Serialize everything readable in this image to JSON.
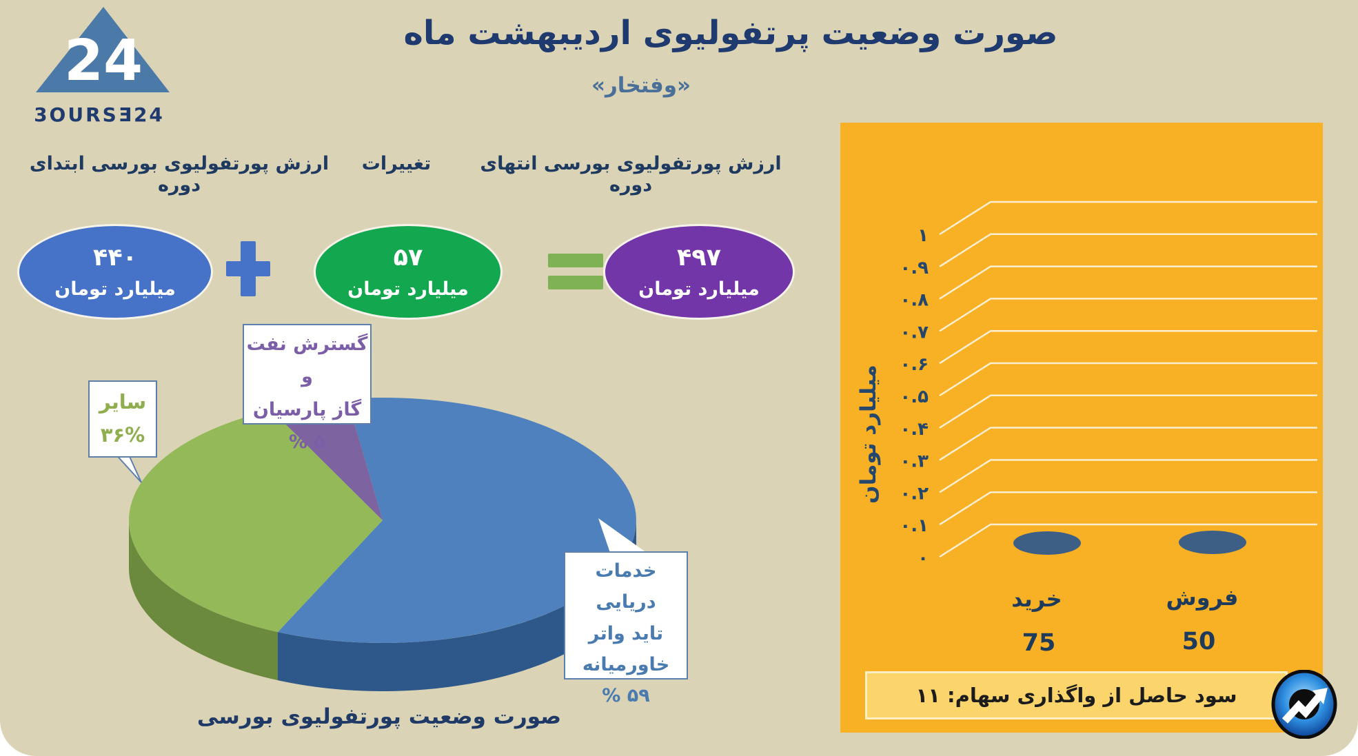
{
  "header": {
    "title": "صورت وضعیت پرتفولیوی اردیبهشت ماه",
    "subtitle": "«وفتخار»"
  },
  "logo": {
    "wordmark": "3OURSƎ24",
    "mark_number": "24"
  },
  "flow": {
    "labels": {
      "start": "ارزش پورتفولیوی بورسی ابتدای دوره",
      "change": "تغییرات",
      "end": "ارزش پورتفولیوی بورسی انتهای دوره"
    },
    "start": {
      "value": "۴۴۰",
      "unit": "میلیارد تومان"
    },
    "change": {
      "value": "۵۷",
      "unit": "میلیارد تومان"
    },
    "end": {
      "value": "۴۹۷",
      "unit": "میلیارد تومان"
    },
    "operators": {
      "plus": "+",
      "equals": "="
    }
  },
  "pie": {
    "caption": "صورت وضعیت پورتفولیوی بورسی",
    "callouts": {
      "tidewater": "خدمات دریایی\nتاید واتر\nخاورمیانه\n۵۹ %",
      "other": "سایر\n۳۶%",
      "parsian": "گسترش نفت و\nگاز پارسیان\n۵ %"
    }
  },
  "bar_panel": {
    "y_axis_title": "میلیارد تومان",
    "ticks": [
      "۱",
      "۰.۹",
      "۰.۸",
      "۰.۷",
      "۰.۶",
      "۰.۵",
      "۰.۴",
      "۰.۳",
      "۰.۲",
      "۰.۱",
      "۰"
    ],
    "categories": [
      {
        "label": "خرید",
        "value": "75"
      },
      {
        "label": "فروش",
        "value": "50"
      }
    ],
    "note": "سود حاصل از واگذاری سهام: ۱۱"
  },
  "palette": {
    "card_bg": "#dbd3b5",
    "panel_orange": "#f8b125",
    "navy": "#1f3a66",
    "steel_blue": "#4a7099",
    "ellipse_blue": "#4673c8",
    "ellipse_green": "#13a74f",
    "ellipse_purple": "#7336a9",
    "plus_blue": "#4673c8",
    "equals_green": "#7fb254",
    "pie_blue": "#4e81bd",
    "pie_blue_dark": "#2e578a",
    "pie_green": "#93b958",
    "pie_green_dark": "#6b8a3e",
    "pie_purple": "#7e63a1",
    "callout_border": "#5d7fae",
    "callout_green_text": "#8fae4e",
    "callout_purple_text": "#7b5ea7",
    "callout_blue_text": "#4a7bb0",
    "tick_navy": "#24476b",
    "cylinder": "#3d5f85",
    "gridline": "#ffffff",
    "note_bg": "#fbd56b",
    "logo_triangle": "#4b7aa9"
  },
  "chart_data": [
    {
      "type": "pie",
      "title": "صورت وضعیت پورتفولیوی بورسی",
      "labels": [
        "خدمات دریایی تاید واتر خاورمیانه",
        "سایر",
        "گسترش نفت و گاز پارسیان"
      ],
      "values": [
        59,
        36,
        5
      ],
      "unit": "%",
      "colors": [
        "#4e81bd",
        "#93b958",
        "#7e63a1"
      ],
      "style": "3d-pie",
      "legend_position": "callouts"
    },
    {
      "type": "bar",
      "categories": [
        "خرید",
        "فروش"
      ],
      "values": [
        75,
        50
      ],
      "bar_heights_shown": [
        0,
        0
      ],
      "title": "",
      "xlabel": "",
      "ylabel": "میلیارد تومان",
      "ylim": [
        0,
        1
      ],
      "y_ticks": [
        0,
        0.1,
        0.2,
        0.3,
        0.4,
        0.5,
        0.6,
        0.7,
        0.8,
        0.9,
        1
      ],
      "grid": true,
      "style": "3d-cylinder on orange background, bars flat at zero with value labels below",
      "note": "سود حاصل از واگذاری سهام: ۱۱"
    }
  ],
  "equation": {
    "start": 440,
    "change": 57,
    "end": 497
  }
}
